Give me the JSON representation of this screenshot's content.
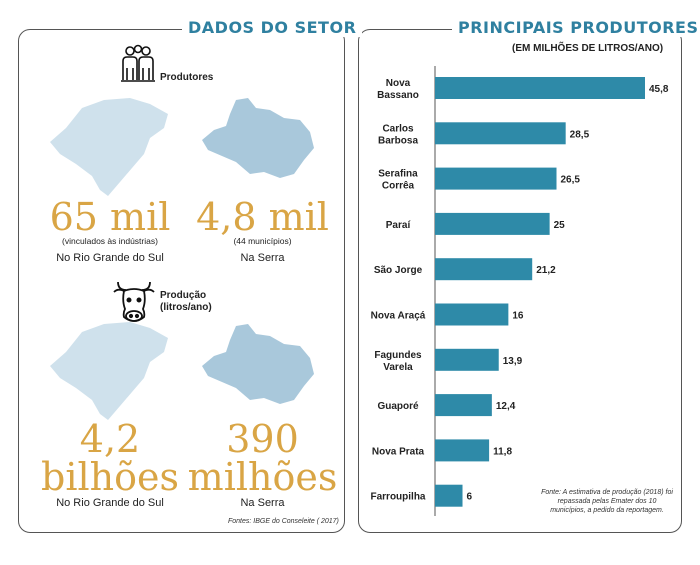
{
  "left": {
    "title": "DADOS DO SETOR",
    "producers_label": "Produtores",
    "production_label_line1": "Produção",
    "production_label_line2": "(litros/ano)",
    "stat1": {
      "value": "65 mil",
      "note": "(vinculados às indústrias)",
      "place": "No Rio Grande do Sul"
    },
    "stat2": {
      "value": "4,8 mil",
      "note": "(44 municípios)",
      "place": "Na Serra"
    },
    "stat3": {
      "value_line1": "4,2",
      "value_line2": "bilhões",
      "place": "No Rio Grande do Sul"
    },
    "stat4": {
      "value_line1": "390",
      "value_line2": "milhões",
      "place": "Na Serra"
    },
    "source": "Fontes: IBGE do Conseleite ( 2017)"
  },
  "right": {
    "title": "PRINCIPAIS PRODUTORES",
    "subtitle": "(EM MILHÕES DE LITROS/ANO)",
    "source": "Fonte: A estimativa de produção (2018) foi repassada pelas Emater dos 10 municípios, a pedido da reportagem."
  },
  "colors": {
    "accent": "#2f80a0",
    "bar": "#2e8aa8",
    "gold": "#d9a545",
    "map_light": "#cfe1ec",
    "map_mid": "#a9c8db"
  },
  "icons": [
    "people-icon",
    "cow-icon"
  ],
  "chart_data": {
    "type": "bar",
    "orientation": "horizontal",
    "title": "PRINCIPAIS PRODUTORES",
    "subtitle": "(EM MILHÕES DE LITROS/ANO)",
    "categories": [
      "Nova Bassano",
      "Carlos Barbosa",
      "Serafina Corrêa",
      "Paraí",
      "São Jorge",
      "Nova Araçá",
      "Fagundes Varela",
      "Guaporé",
      "Nova Prata",
      "Farroupilha"
    ],
    "category_lines": [
      [
        "Nova",
        "Bassano"
      ],
      [
        "Carlos",
        "Barbosa"
      ],
      [
        "Serafina",
        "Corrêa"
      ],
      [
        "Paraí"
      ],
      [
        "São Jorge"
      ],
      [
        "Nova Araçá"
      ],
      [
        "Fagundes",
        "Varela"
      ],
      [
        "Guaporé"
      ],
      [
        "Nova Prata"
      ],
      [
        "Farroupilha"
      ]
    ],
    "values": [
      45.8,
      28.5,
      26.5,
      25,
      21.2,
      16,
      13.9,
      12.4,
      11.8,
      6
    ],
    "value_labels": [
      "45,8",
      "28,5",
      "26,5",
      "25",
      "21,2",
      "16",
      "13,9",
      "12,4",
      "11,8",
      "6"
    ],
    "xlim": [
      0,
      45.8
    ],
    "grid": false,
    "legend": "none"
  }
}
